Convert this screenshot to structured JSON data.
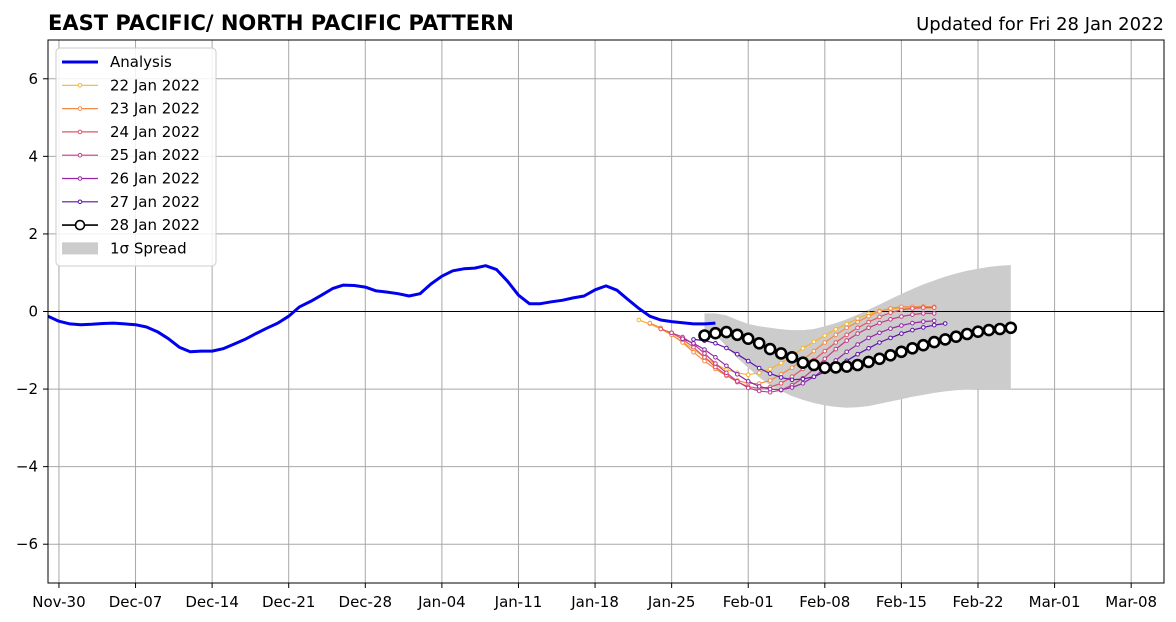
{
  "title": "EAST PACIFIC/ NORTH PACIFIC PATTERN",
  "subtitle": "Updated for Fri 28 Jan 2022",
  "chart_data": {
    "type": "line",
    "x_ticks": [
      "Nov-30",
      "Dec-07",
      "Dec-14",
      "Dec-21",
      "Dec-28",
      "Jan-04",
      "Jan-11",
      "Jan-18",
      "Jan-25",
      "Feb-01",
      "Feb-08",
      "Feb-15",
      "Feb-22",
      "Mar-01",
      "Mar-08"
    ],
    "xlim": [
      "2021-11-29",
      "2022-03-11"
    ],
    "ylim": [
      -7,
      7
    ],
    "y_ticks": [
      -6,
      -4,
      -2,
      0,
      2,
      4,
      6
    ],
    "y_tick_labels": [
      "−6",
      "−4",
      "−2",
      "0",
      "2",
      "4",
      "6"
    ],
    "grid": true,
    "zero_line": 0,
    "legend": {
      "position": "top-left",
      "entries": [
        "Analysis",
        "22 Jan 2022",
        "23 Jan 2022",
        "24 Jan 2022",
        "25 Jan 2022",
        "26 Jan 2022",
        "27 Jan 2022",
        "28 Jan 2022",
        "1σ Spread"
      ]
    },
    "analysis": {
      "name": "Analysis",
      "color": "#0000ee",
      "start": "2021-11-29",
      "values": [
        -0.12,
        -0.25,
        -0.32,
        -0.34,
        -0.33,
        -0.31,
        -0.3,
        -0.32,
        -0.34,
        -0.4,
        -0.52,
        -0.7,
        -0.92,
        -1.04,
        -1.02,
        -1.02,
        -0.96,
        -0.84,
        -0.72,
        -0.57,
        -0.43,
        -0.3,
        -0.12,
        0.12,
        0.26,
        0.42,
        0.59,
        0.68,
        0.67,
        0.63,
        0.53,
        0.5,
        0.46,
        0.4,
        0.46,
        0.71,
        0.91,
        1.05,
        1.1,
        1.12,
        1.18,
        1.08,
        0.78,
        0.42,
        0.2,
        0.2,
        0.25,
        0.29,
        0.35,
        0.4,
        0.56,
        0.66,
        0.55,
        0.31,
        0.08,
        -0.12,
        -0.22,
        -0.26,
        -0.29,
        -0.32,
        -0.32,
        -0.3
      ]
    },
    "forecasts": [
      {
        "name": "22 Jan 2022",
        "color": "#f8b52a",
        "start": "2022-01-22",
        "values": [
          -0.22,
          -0.32,
          -0.45,
          -0.6,
          -0.78,
          -0.98,
          -1.18,
          -1.36,
          -1.5,
          -1.58,
          -1.63,
          -1.58,
          -1.48,
          -1.33,
          -1.15,
          -0.95,
          -0.78,
          -0.62,
          -0.46,
          -0.32,
          -0.18,
          -0.06,
          0.02,
          0.06,
          0.09,
          0.1,
          0.1,
          0.1
        ]
      },
      {
        "name": "23 Jan 2022",
        "color": "#f58a45",
        "start": "2022-01-23",
        "values": [
          -0.3,
          -0.42,
          -0.6,
          -0.8,
          -1.05,
          -1.28,
          -1.48,
          -1.66,
          -1.78,
          -1.85,
          -1.86,
          -1.78,
          -1.62,
          -1.45,
          -1.25,
          -1.02,
          -0.8,
          -0.6,
          -0.42,
          -0.27,
          -0.12,
          0.0,
          0.08,
          0.12,
          0.12,
          0.13,
          0.12
        ]
      },
      {
        "name": "24 Jan 2022",
        "color": "#e15568",
        "start": "2022-01-24",
        "values": [
          -0.45,
          -0.55,
          -0.72,
          -0.92,
          -1.18,
          -1.43,
          -1.64,
          -1.82,
          -1.94,
          -1.98,
          -1.95,
          -1.85,
          -1.68,
          -1.48,
          -1.25,
          -1.02,
          -0.8,
          -0.6,
          -0.42,
          -0.27,
          -0.14,
          -0.03,
          0.04,
          0.08,
          0.1,
          0.1
        ]
      },
      {
        "name": "25 Jan 2022",
        "color": "#c13d89",
        "start": "2022-01-25",
        "values": [
          -0.55,
          -0.66,
          -0.84,
          -1.08,
          -1.34,
          -1.58,
          -1.8,
          -1.97,
          -2.05,
          -2.08,
          -2.03,
          -1.9,
          -1.72,
          -1.48,
          -1.22,
          -0.97,
          -0.75,
          -0.57,
          -0.42,
          -0.3,
          -0.2,
          -0.13,
          -0.08,
          -0.05,
          -0.05
        ]
      },
      {
        "name": "26 Jan 2022",
        "color": "#9427a6",
        "start": "2022-01-26",
        "values": [
          -0.7,
          -0.82,
          -0.98,
          -1.18,
          -1.4,
          -1.62,
          -1.8,
          -1.93,
          -2.0,
          -2.02,
          -1.96,
          -1.85,
          -1.68,
          -1.48,
          -1.26,
          -1.04,
          -0.85,
          -0.68,
          -0.55,
          -0.44,
          -0.36,
          -0.3,
          -0.26,
          -0.24
        ]
      },
      {
        "name": "27 Jan 2022",
        "color": "#5c12a8",
        "start": "2022-01-27",
        "values": [
          -0.72,
          -0.75,
          -0.82,
          -0.94,
          -1.1,
          -1.28,
          -1.46,
          -1.6,
          -1.7,
          -1.76,
          -1.74,
          -1.68,
          -1.56,
          -1.42,
          -1.27,
          -1.1,
          -0.95,
          -0.8,
          -0.68,
          -0.57,
          -0.48,
          -0.41,
          -0.35,
          -0.31
        ]
      },
      {
        "name": "28 Jan 2022",
        "color": "#000000",
        "start": "2022-01-28",
        "values": [
          -0.62,
          -0.56,
          -0.53,
          -0.6,
          -0.7,
          -0.82,
          -0.97,
          -1.08,
          -1.18,
          -1.32,
          -1.38,
          -1.45,
          -1.44,
          -1.42,
          -1.38,
          -1.3,
          -1.22,
          -1.13,
          -1.04,
          -0.95,
          -0.87,
          -0.79,
          -0.72,
          -0.65,
          -0.58,
          -0.52,
          -0.48,
          -0.45,
          -0.42
        ]
      }
    ],
    "spread": {
      "name": "1σ Spread",
      "color": "#cccccc",
      "start": "2022-01-28",
      "upper": [
        -0.05,
        -0.05,
        -0.1,
        -0.22,
        -0.32,
        -0.38,
        -0.42,
        -0.46,
        -0.48,
        -0.48,
        -0.45,
        -0.38,
        -0.3,
        -0.2,
        -0.08,
        0.05,
        0.18,
        0.32,
        0.45,
        0.58,
        0.7,
        0.8,
        0.9,
        0.98,
        1.05,
        1.1,
        1.15,
        1.18,
        1.2
      ],
      "lower": [
        -0.5,
        -0.6,
        -0.9,
        -1.2,
        -1.45,
        -1.7,
        -1.9,
        -2.05,
        -2.18,
        -2.28,
        -2.36,
        -2.42,
        -2.46,
        -2.48,
        -2.47,
        -2.44,
        -2.38,
        -2.32,
        -2.26,
        -2.2,
        -2.15,
        -2.1,
        -2.06,
        -2.03,
        -2.01,
        -2.0,
        -2.0,
        -2.0,
        -2.0
      ]
    }
  }
}
